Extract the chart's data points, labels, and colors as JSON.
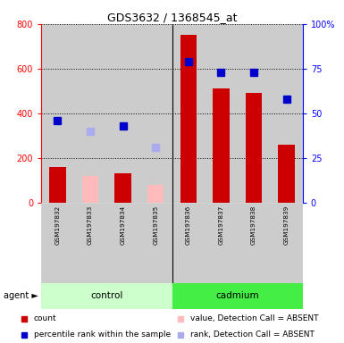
{
  "title": "GDS3632 / 1368545_at",
  "samples": [
    "GSM197832",
    "GSM197833",
    "GSM197834",
    "GSM197835",
    "GSM197836",
    "GSM197837",
    "GSM197838",
    "GSM197839"
  ],
  "count_values": [
    160,
    0,
    130,
    0,
    750,
    510,
    490,
    260
  ],
  "count_absent": [
    0,
    120,
    0,
    80,
    0,
    0,
    0,
    0
  ],
  "rank_values_pct": [
    46,
    0,
    43,
    0,
    79,
    73,
    73,
    58
  ],
  "rank_absent_pct": [
    0,
    40,
    0,
    31,
    0,
    0,
    0,
    0
  ],
  "count_color": "#cc0000",
  "count_absent_color": "#ffbbbb",
  "rank_color": "#0000cc",
  "rank_absent_color": "#aaaaee",
  "ylim_left": [
    0,
    800
  ],
  "yticks_left": [
    0,
    200,
    400,
    600,
    800
  ],
  "yticks_right": [
    0,
    25,
    50,
    75,
    100
  ],
  "bar_bg": "#cccccc",
  "plot_bg": "#ffffff",
  "bar_width": 0.5,
  "marker_size": 6,
  "control_color": "#ccffcc",
  "cadmium_color": "#44ee44"
}
